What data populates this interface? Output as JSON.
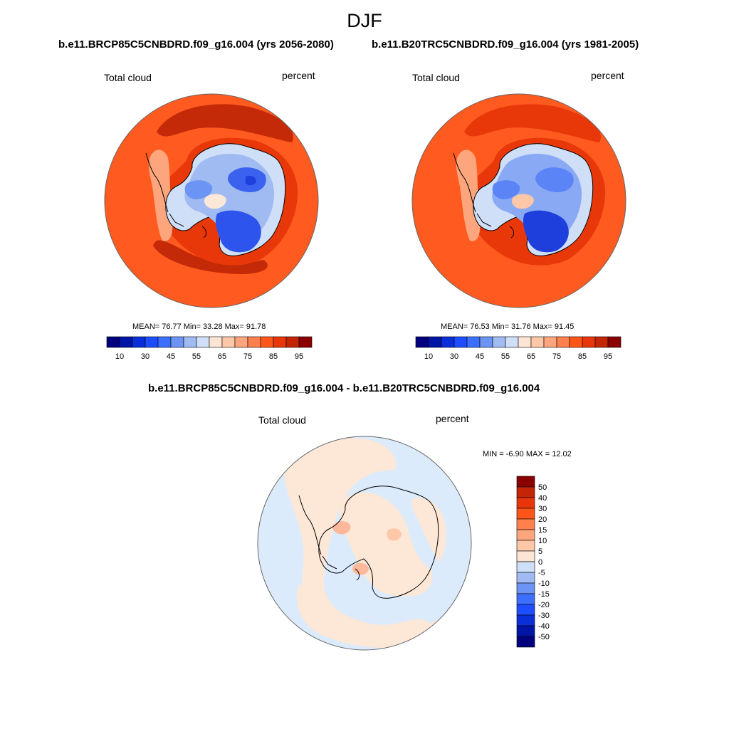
{
  "season": "DJF",
  "colors": {
    "scale": [
      "#00007f",
      "#0014a6",
      "#0a2ed8",
      "#1e4dff",
      "#3d6fff",
      "#6b94f4",
      "#9fbbf2",
      "#cfdff7",
      "#fde5d5",
      "#fdc7a8",
      "#fda67e",
      "#ff7f4d",
      "#ff5519",
      "#e8360a",
      "#c42505",
      "#8b0000"
    ],
    "cont_lt": [
      "#dcebfb",
      "#bdd6f7",
      "#9fbbf2"
    ],
    "cont_md": [
      "#8aa9f5",
      "#5b85f7",
      "#3a62ef"
    ],
    "cont_dk": [
      "#2d54ec",
      "#1f3fdd"
    ],
    "warm": [
      "#fce8d8",
      "#fdc7a8",
      "#fda67e"
    ],
    "ocean": [
      "#ff5a1f",
      "#e8380a",
      "#c42a08"
    ],
    "diff": [
      "#dcebfb",
      "#fde7d6",
      "#fdb79a"
    ]
  },
  "panels": [
    {
      "title": "b.e11.BRCP85C5CNBDRD.f09_g16.004 (yrs 2056-2080)",
      "var": "Total cloud",
      "units": "percent",
      "stats": "MEAN=  76.77  Min=  33.28  Max=  91.78",
      "labelbar": [
        "10",
        "30",
        "45",
        "55",
        "65",
        "75",
        "85",
        "95"
      ]
    },
    {
      "title": "b.e11.B20TRC5CNBDRD.f09_g16.004 (yrs 1981-2005)",
      "var": "Total cloud",
      "units": "percent",
      "stats": "MEAN=  76.53  Min=  31.76  Max=  91.45",
      "labelbar": [
        "10",
        "30",
        "45",
        "55",
        "65",
        "75",
        "85",
        "95"
      ]
    }
  ],
  "diff_panel": {
    "title": "b.e11.BRCP85C5CNBDRD.f09_g16.004 - b.e11.B20TRC5CNBDRD.f09_g16.004",
    "var": "Total cloud",
    "units": "percent",
    "stats": "MIN =  -6.90 MAX =  12.02",
    "labelbar": [
      "50",
      "40",
      "30",
      "20",
      "15",
      "10",
      "5",
      "0",
      "-5",
      "-10",
      "-15",
      "-20",
      "-30",
      "-40",
      "-50"
    ]
  }
}
